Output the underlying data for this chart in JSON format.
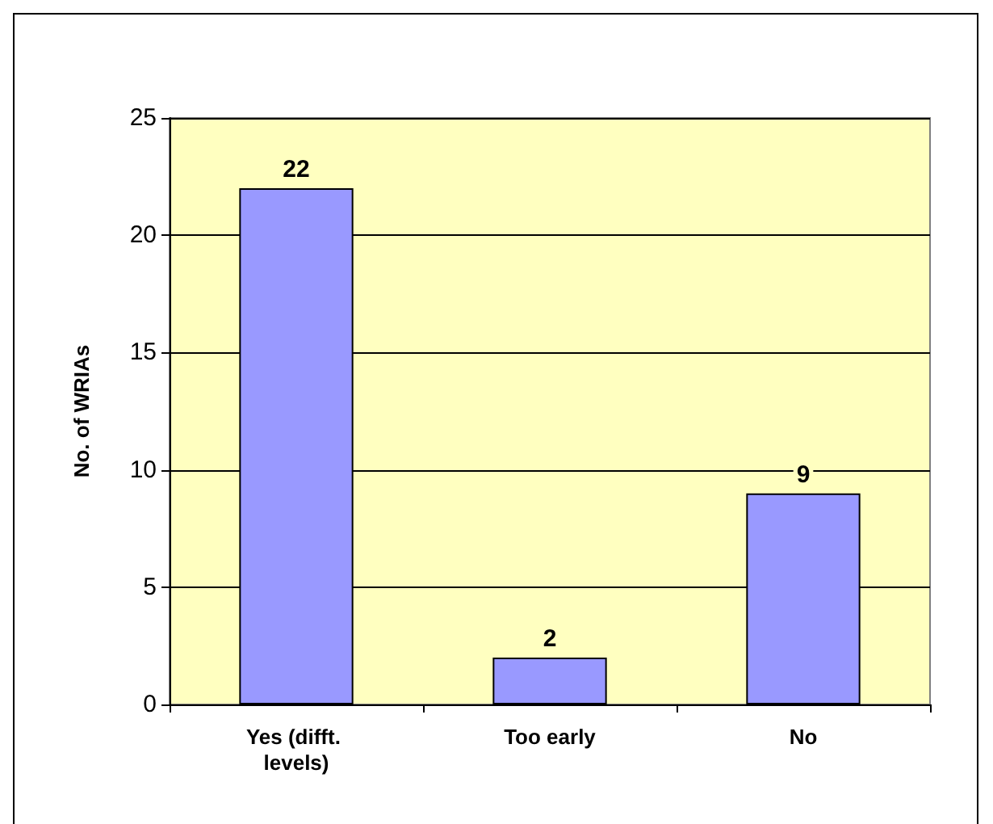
{
  "chart_data": {
    "type": "bar",
    "ylabel": "No. of WRIAs",
    "categories": [
      "Yes (difft. levels)",
      "Too early",
      "No"
    ],
    "values": [
      22,
      2,
      9
    ],
    "color": "#9999ff",
    "ylim": [
      0,
      25
    ],
    "yticks": [
      0,
      5,
      10,
      15,
      20,
      25
    ],
    "grid": "y",
    "data_labels": true
  }
}
